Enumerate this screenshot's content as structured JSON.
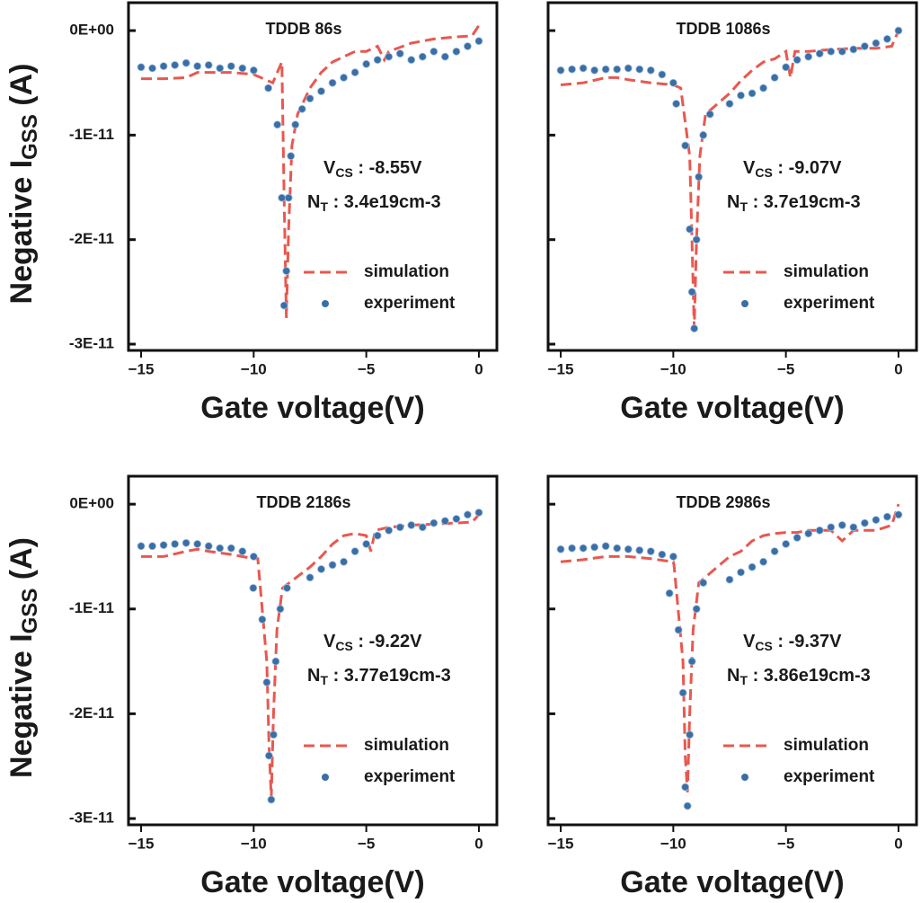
{
  "chart_data": [
    {
      "type": "line",
      "title": "TDDB 86s",
      "xlabel": "Gate voltage(V)",
      "ylabel": {
        "main": "Negative I",
        "sub": "GSS",
        "tail": " (A)"
      },
      "annotations": [
        {
          "main": "V",
          "sub": "CS",
          "text": " : -8.55V"
        },
        {
          "main": "N",
          "sub": "T",
          "text": " : 3.4e19cm-3"
        }
      ],
      "xlim": [
        -15.56,
        0.8
      ],
      "xticks": [
        {
          "value": -15,
          "label": "−15"
        },
        {
          "value": -10,
          "label": "−10"
        },
        {
          "value": -5,
          "label": "−5"
        },
        0
      ],
      "ylim": [
        -3.06e-11,
        2.67e-12
      ],
      "yticks": [
        {
          "value": 0,
          "label": "0E+00"
        },
        {
          "value": -1e-11,
          "label": "-1E-11"
        },
        {
          "value": -2e-11,
          "label": "-2E-11"
        },
        {
          "value": -3e-11,
          "label": "-3E-11"
        }
      ],
      "legend": "lower right",
      "series": [
        {
          "name": "simulation",
          "type": "line",
          "color": "#e8584f",
          "x": [
            -15,
            -14,
            -13,
            -12.5,
            -12,
            -11,
            -10,
            -9.15,
            -8.75,
            -8.65,
            -8.55,
            -8.45,
            -8.3,
            -8.05,
            -7.5,
            -7,
            -6.5,
            -6,
            -5.5,
            -5,
            -4.5,
            -4.2,
            -4,
            -3,
            -2,
            -1,
            -0.3,
            0
          ],
          "values": [
            -4.6e-12,
            -4.6e-12,
            -4.5e-12,
            -4e-12,
            -4e-12,
            -4e-12,
            -4.2e-12,
            -5e-12,
            -3e-12,
            -1.6e-11,
            -2.75e-11,
            -1.9e-11,
            -1.1e-11,
            -8e-12,
            -5.5e-12,
            -4e-12,
            -3e-12,
            -2.5e-12,
            -2e-12,
            -2e-12,
            -1.5e-12,
            -2.8e-12,
            -2e-12,
            -1.2e-12,
            -8e-13,
            -6e-13,
            -5e-13,
            5e-13
          ]
        },
        {
          "name": "experiment",
          "type": "scatter",
          "color": "#3a6ea5",
          "x": [
            -15,
            -14.5,
            -14,
            -13.5,
            -13,
            -12.5,
            -12,
            -11.5,
            -11,
            -10.5,
            -10,
            -9.35,
            -8.95,
            -8.75,
            -8.65,
            -8.55,
            -8.45,
            -8.35,
            -8.15,
            -7.85,
            -7.5,
            -7,
            -6.5,
            -6,
            -5.5,
            -5,
            -4.5,
            -4,
            -3.5,
            -3,
            -2.5,
            -2,
            -1.5,
            -1,
            -0.5,
            0
          ],
          "values": [
            -3.5e-12,
            -3.6e-12,
            -3.4e-12,
            -3.3e-12,
            -3.1e-12,
            -3.4e-12,
            -3.3e-12,
            -3.6e-12,
            -3.4e-12,
            -3.6e-12,
            -3.8e-12,
            -5.5e-12,
            -9e-12,
            -1.6e-11,
            -2.63e-11,
            -2.3e-11,
            -1.6e-11,
            -1.2e-11,
            -9e-12,
            -7.5e-12,
            -6.5e-12,
            -5.8e-12,
            -5e-12,
            -4.5e-12,
            -4e-12,
            -3.2e-12,
            -2.8e-12,
            -2.5e-12,
            -2.2e-12,
            -2.8e-12,
            -2.5e-12,
            -2e-12,
            -2.5e-12,
            -2e-12,
            -1.5e-12,
            -1e-12
          ]
        }
      ]
    },
    {
      "type": "line",
      "title": "TDDB 1086s",
      "xlabel": "Gate voltage(V)",
      "sharey": true,
      "annotations": [
        {
          "main": "V",
          "sub": "CS",
          "text": " : -9.07V"
        },
        {
          "main": "N",
          "sub": "T",
          "text": " : 3.7e19cm-3"
        }
      ],
      "xlim": [
        -15.56,
        0.8
      ],
      "xticks": [
        {
          "value": -15,
          "label": "−15"
        },
        {
          "value": -10,
          "label": "−10"
        },
        {
          "value": -5,
          "label": "−5"
        },
        0
      ],
      "legend": "lower right",
      "series": [
        {
          "name": "simulation",
          "type": "line",
          "color": "#e8584f",
          "x": [
            -15,
            -14,
            -13,
            -12.5,
            -12,
            -11,
            -10,
            -9.67,
            -9.27,
            -9.17,
            -9.07,
            -8.97,
            -8.82,
            -8.57,
            -7.5,
            -7,
            -6.5,
            -6,
            -5.5,
            -5,
            -4.8,
            -4.6,
            -4,
            -3,
            -2,
            -1,
            -0.3,
            0
          ],
          "values": [
            -5.2e-12,
            -5e-12,
            -4.5e-12,
            -4.5e-12,
            -4.7e-12,
            -5e-12,
            -5.2e-12,
            -5.5e-12,
            -1.2e-11,
            -2e-11,
            -2.85e-11,
            -2e-11,
            -1.2e-11,
            -8e-12,
            -6e-12,
            -4.8e-12,
            -3.8e-12,
            -3e-12,
            -2.7e-12,
            -2e-12,
            -4.5e-12,
            -2e-12,
            -2e-12,
            -1.8e-12,
            -1.7e-12,
            -1.7e-12,
            -1.5e-12,
            0
          ]
        },
        {
          "name": "experiment",
          "type": "scatter",
          "color": "#3a6ea5",
          "x": [
            -15,
            -14.5,
            -14,
            -13.5,
            -13,
            -12.5,
            -12,
            -11.5,
            -11,
            -10.5,
            -10,
            -9.87,
            -9.47,
            -9.27,
            -9.17,
            -9.07,
            -8.97,
            -8.87,
            -8.67,
            -8.37,
            -7.5,
            -7,
            -6.5,
            -6,
            -5.5,
            -5,
            -4.5,
            -4,
            -3.5,
            -3,
            -2.5,
            -2,
            -1.5,
            -1,
            -0.5,
            0
          ],
          "values": [
            -3.8e-12,
            -3.7e-12,
            -3.6e-12,
            -3.8e-12,
            -3.7e-12,
            -3.7e-12,
            -3.6e-12,
            -3.7e-12,
            -3.8e-12,
            -4.2e-12,
            -5e-12,
            -7e-12,
            -1.1e-11,
            -1.9e-11,
            -2.5e-11,
            -2.85e-11,
            -2e-11,
            -1.4e-11,
            -1e-11,
            -8e-12,
            -7e-12,
            -6.2e-12,
            -6e-12,
            -5.5e-12,
            -4.5e-12,
            -3.5e-12,
            -2.8e-12,
            -2.5e-12,
            -2.2e-12,
            -2e-12,
            -2e-12,
            -1.8e-12,
            -1.5e-12,
            -1.2e-12,
            -8e-13,
            0
          ]
        }
      ]
    },
    {
      "type": "line",
      "title": "TDDB 2186s",
      "xlabel": "Gate voltage(V)",
      "ylabel": {
        "main": "Negative I",
        "sub": "GSS",
        "tail": " (A)"
      },
      "annotations": [
        {
          "main": "V",
          "sub": "CS",
          "text": " : -9.22V"
        },
        {
          "main": "N",
          "sub": "T",
          "text": " : 3.77e19cm-3"
        }
      ],
      "xlim": [
        -15.56,
        0.8
      ],
      "xticks": [
        {
          "value": -15,
          "label": "−15"
        },
        {
          "value": -10,
          "label": "−10"
        },
        {
          "value": -5,
          "label": "−5"
        },
        0
      ],
      "ylim": [
        -3.06e-11,
        2.67e-12
      ],
      "yticks": [
        {
          "value": 0,
          "label": "0E+00"
        },
        {
          "value": -1e-11,
          "label": "-1E-11"
        },
        {
          "value": -2e-11,
          "label": "-2E-11"
        },
        {
          "value": -3e-11,
          "label": "-3E-11"
        }
      ],
      "legend": "lower right",
      "series": [
        {
          "name": "simulation",
          "type": "line",
          "color": "#e8584f",
          "x": [
            -15,
            -14,
            -13,
            -12.5,
            -12,
            -11,
            -10,
            -9.82,
            -9.42,
            -9.32,
            -9.22,
            -9.12,
            -8.97,
            -8.72,
            -7.5,
            -7,
            -6.5,
            -6,
            -5.5,
            -5,
            -4.8,
            -4.6,
            -4,
            -3,
            -2,
            -1,
            -0.3,
            0
          ],
          "values": [
            -5e-12,
            -5e-12,
            -4.5e-12,
            -4.3e-12,
            -4.5e-12,
            -4.8e-12,
            -5.2e-12,
            -5.2e-12,
            -1.5e-11,
            -2.3e-11,
            -2.8e-11,
            -2e-11,
            -1.2e-11,
            -8e-12,
            -6e-12,
            -5e-12,
            -3.8e-12,
            -3e-12,
            -2.8e-12,
            -3e-12,
            -4.5e-12,
            -2.5e-12,
            -2.2e-12,
            -2e-12,
            -1.9e-12,
            -1.8e-12,
            -1.7e-12,
            -1e-12
          ]
        },
        {
          "name": "experiment",
          "type": "scatter",
          "color": "#3a6ea5",
          "x": [
            -15,
            -14.5,
            -14,
            -13.5,
            -13,
            -12.5,
            -12,
            -11.5,
            -11,
            -10.5,
            -10,
            -10.02,
            -9.62,
            -9.42,
            -9.32,
            -9.22,
            -9.12,
            -9.02,
            -8.82,
            -8.52,
            -7.5,
            -7,
            -6.5,
            -6,
            -5.5,
            -5,
            -4.5,
            -4,
            -3.5,
            -3,
            -2.5,
            -2,
            -1.5,
            -1,
            -0.5,
            0
          ],
          "values": [
            -4e-12,
            -4e-12,
            -3.9e-12,
            -3.8e-12,
            -3.7e-12,
            -3.8e-12,
            -4e-12,
            -4.2e-12,
            -4.2e-12,
            -4.5e-12,
            -5e-12,
            -8e-12,
            -1.1e-11,
            -1.7e-11,
            -2.4e-11,
            -2.82e-11,
            -2.2e-11,
            -1.5e-11,
            -1e-11,
            -8e-12,
            -7e-12,
            -6.2e-12,
            -5.8e-12,
            -5.5e-12,
            -4.5e-12,
            -3.8e-12,
            -3e-12,
            -2.5e-12,
            -2.2e-12,
            -2e-12,
            -2.2e-12,
            -1.8e-12,
            -1.6e-12,
            -1.4e-12,
            -1e-12,
            -8e-13
          ]
        }
      ]
    },
    {
      "type": "line",
      "title": "TDDB 2986s",
      "xlabel": "Gate voltage(V)",
      "sharey": true,
      "annotations": [
        {
          "main": "V",
          "sub": "CS",
          "text": " : -9.37V"
        },
        {
          "main": "N",
          "sub": "T",
          "text": " : 3.86e19cm-3"
        }
      ],
      "xlim": [
        -15.56,
        0.8
      ],
      "xticks": [
        {
          "value": -15,
          "label": "−15"
        },
        {
          "value": -10,
          "label": "−10"
        },
        {
          "value": -5,
          "label": "−5"
        },
        0
      ],
      "legend": "lower right",
      "series": [
        {
          "name": "simulation",
          "type": "line",
          "color": "#e8584f",
          "x": [
            -15,
            -14,
            -13,
            -12.5,
            -12,
            -11,
            -10,
            -9.97,
            -9.57,
            -9.47,
            -9.37,
            -9.27,
            -9.12,
            -8.87,
            -7.5,
            -7,
            -6.5,
            -6,
            -5.5,
            -5,
            -4.5,
            -4,
            -3,
            -2.5,
            -2,
            -1,
            -0.3,
            0
          ],
          "values": [
            -5.5e-12,
            -5.3e-12,
            -5e-12,
            -5e-12,
            -5e-12,
            -5.2e-12,
            -5.5e-12,
            -5.8e-12,
            -1.5e-11,
            -2.4e-11,
            -2.75e-11,
            -2e-11,
            -1.2e-11,
            -7.5e-12,
            -5e-12,
            -4.5e-12,
            -3.5e-12,
            -3e-12,
            -2.8e-12,
            -2.7e-12,
            -2.7e-12,
            -2.5e-12,
            -2.5e-12,
            -3.5e-12,
            -2.5e-12,
            -2.5e-12,
            -2e-12,
            0
          ]
        },
        {
          "name": "experiment",
          "type": "scatter",
          "color": "#3a6ea5",
          "x": [
            -15,
            -14.5,
            -14,
            -13.5,
            -13,
            -12.5,
            -12,
            -11.5,
            -11,
            -10.5,
            -10,
            -10.17,
            -9.77,
            -9.57,
            -9.47,
            -9.37,
            -9.27,
            -9.17,
            -8.97,
            -8.67,
            -7.5,
            -7,
            -6.5,
            -6,
            -5.5,
            -5,
            -4.5,
            -4,
            -3.5,
            -3,
            -2.5,
            -2,
            -1.5,
            -1,
            -0.5,
            0
          ],
          "values": [
            -4.3e-12,
            -4.2e-12,
            -4.2e-12,
            -4.1e-12,
            -4e-12,
            -4.2e-12,
            -4.3e-12,
            -4.4e-12,
            -4.5e-12,
            -4.8e-12,
            -5e-12,
            -8.5e-12,
            -1.2e-11,
            -1.8e-11,
            -2.7e-11,
            -2.88e-11,
            -2.2e-11,
            -1.5e-11,
            -1e-11,
            -7.5e-12,
            -7.2e-12,
            -6.5e-12,
            -6e-12,
            -5.5e-12,
            -4.5e-12,
            -3.8e-12,
            -3.2e-12,
            -2.8e-12,
            -2.5e-12,
            -2.2e-12,
            -2e-12,
            -2.2e-12,
            -1.8e-12,
            -1.5e-12,
            -1.2e-12,
            -1e-12
          ]
        }
      ]
    }
  ]
}
